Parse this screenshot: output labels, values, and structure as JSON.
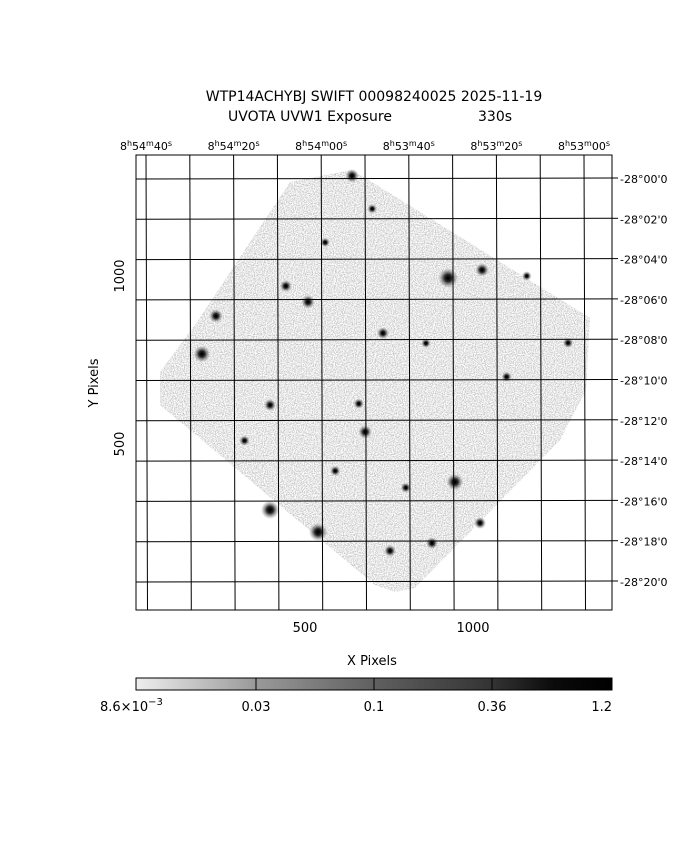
{
  "title": {
    "line1": "WTP14ACHYBJ SWIFT 00098240025 2025-11-19",
    "line2_left": "UVOTA UVW1 Exposure",
    "line2_right": "330s"
  },
  "chart_data": {
    "type": "heatmap",
    "description_kind": "sky image",
    "xlabel": "X Pixels",
    "ylabel": "Y Pixels",
    "xlim": [
      0,
      1414
    ],
    "ylim": [
      0,
      1355
    ],
    "x_ticks": [
      "500",
      "1000"
    ],
    "x_tick_values": [
      500,
      1000
    ],
    "y_ticks": [
      "500",
      "1000"
    ],
    "y_tick_values": [
      500,
      1000
    ],
    "ra_labels": [
      {
        "h": "8",
        "m": "54",
        "s": "40"
      },
      {
        "h": "8",
        "m": "54",
        "s": "20"
      },
      {
        "h": "8",
        "m": "54",
        "s": "00"
      },
      {
        "h": "8",
        "m": "53",
        "s": "40"
      },
      {
        "h": "8",
        "m": "53",
        "s": "20"
      },
      {
        "h": "8",
        "m": "53",
        "s": "00"
      }
    ],
    "dec_labels": [
      "-28°00'0",
      "-28°02'0",
      "-28°04'0",
      "-28°06'0",
      "-28°08'0",
      "-28°10'0",
      "-28°12'0",
      "-28°14'0",
      "-28°16'0",
      "-28°18'0",
      "-28°20'0"
    ],
    "colorbar": {
      "scale": "log",
      "min_label": "8.6×10",
      "min_exp": "−3",
      "tick_labels": [
        "0.03",
        "0.1",
        "0.36",
        "1.2"
      ],
      "range": [
        0.0086,
        1.2
      ]
    },
    "sources": [
      {
        "x": 926,
        "y": 994,
        "b": 1.0
      },
      {
        "x": 396,
        "y": 304,
        "b": 0.9
      },
      {
        "x": 539,
        "y": 238,
        "b": 0.9
      },
      {
        "x": 193,
        "y": 768,
        "b": 0.8
      },
      {
        "x": 946,
        "y": 387,
        "b": 0.8
      },
      {
        "x": 235,
        "y": 881,
        "b": 0.6
      },
      {
        "x": 509,
        "y": 923,
        "b": 0.6
      },
      {
        "x": 1027,
        "y": 1018,
        "b": 0.6
      },
      {
        "x": 679,
        "y": 536,
        "b": 0.6
      },
      {
        "x": 396,
        "y": 616,
        "b": 0.5
      },
      {
        "x": 640,
        "y": 1298,
        "b": 0.6
      },
      {
        "x": 732,
        "y": 830,
        "b": 0.5
      },
      {
        "x": 1021,
        "y": 265,
        "b": 0.5
      },
      {
        "x": 753,
        "y": 182,
        "b": 0.5
      },
      {
        "x": 878,
        "y": 205,
        "b": 0.5
      },
      {
        "x": 1283,
        "y": 801,
        "b": 0.4
      },
      {
        "x": 443,
        "y": 970,
        "b": 0.5
      },
      {
        "x": 660,
        "y": 620,
        "b": 0.4
      },
      {
        "x": 800,
        "y": 370,
        "b": 0.4
      },
      {
        "x": 590,
        "y": 420,
        "b": 0.4
      },
      {
        "x": 1100,
        "y": 700,
        "b": 0.4
      },
      {
        "x": 320,
        "y": 510,
        "b": 0.4
      },
      {
        "x": 860,
        "y": 800,
        "b": 0.35
      },
      {
        "x": 1160,
        "y": 1000,
        "b": 0.35
      },
      {
        "x": 700,
        "y": 1200,
        "b": 0.35
      },
      {
        "x": 560,
        "y": 1100,
        "b": 0.35
      }
    ]
  }
}
